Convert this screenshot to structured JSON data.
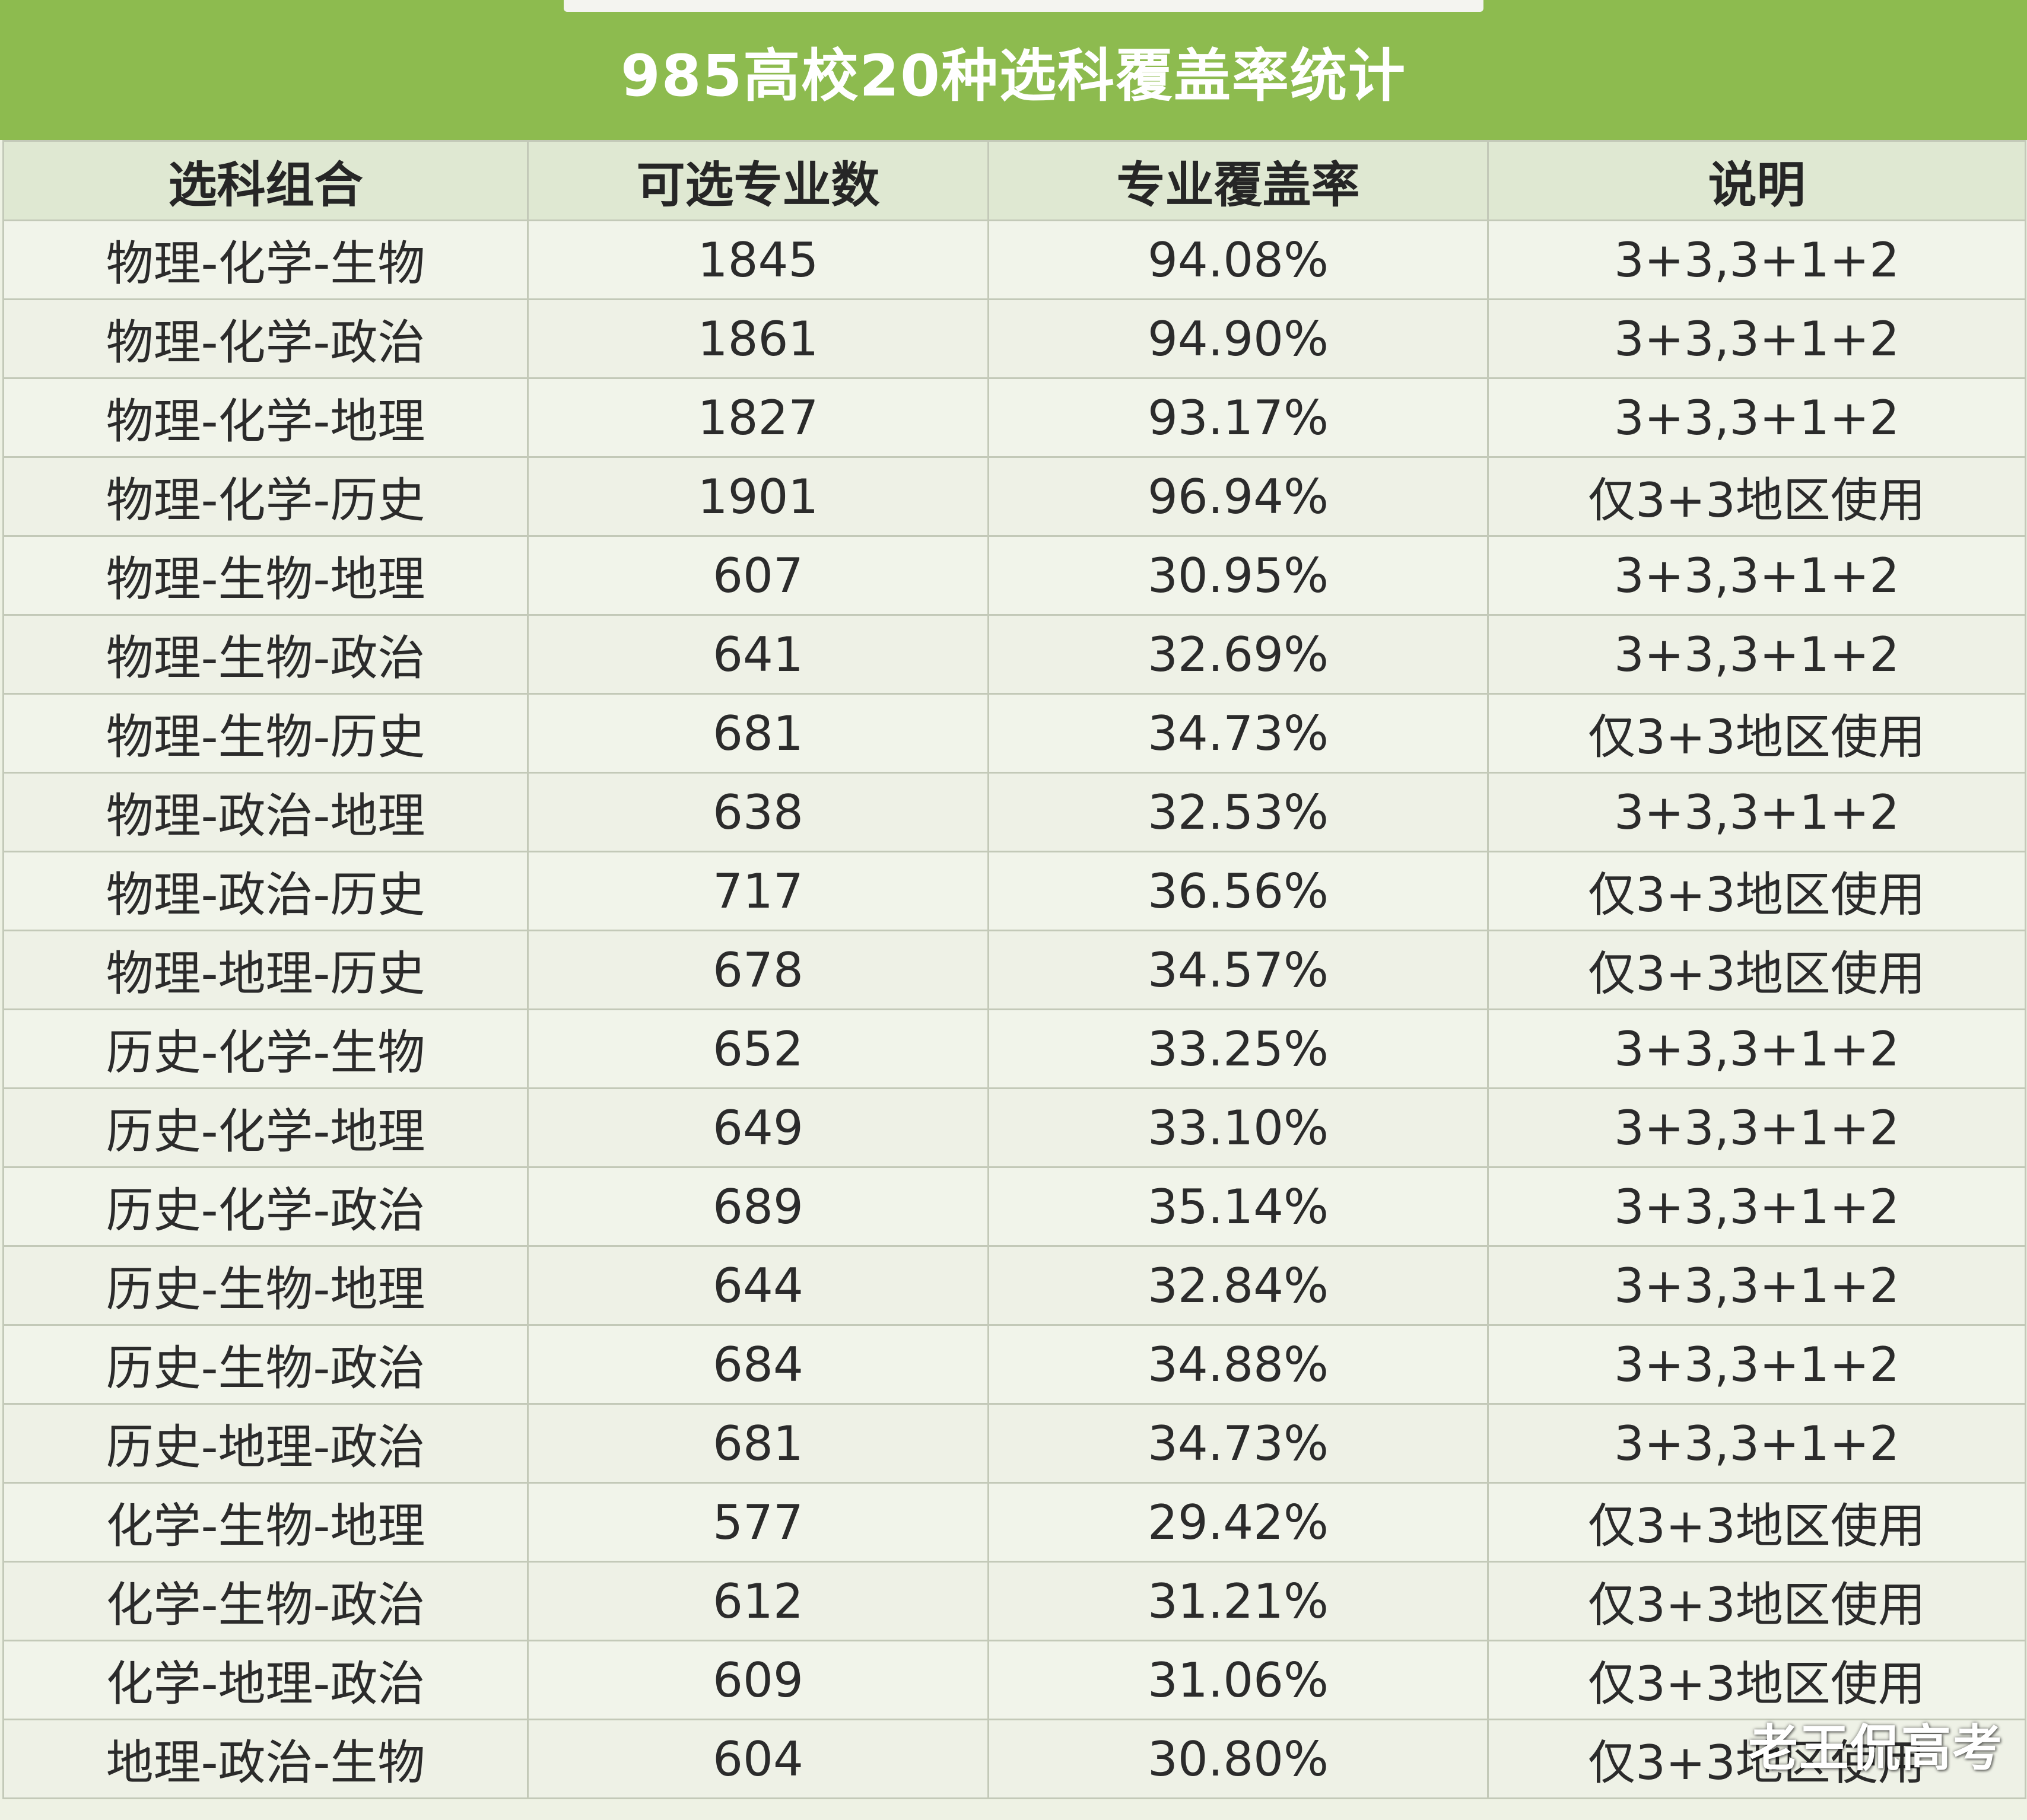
{
  "title": "985高校20种选科覆盖率统计",
  "table": {
    "headers": [
      "选科组合",
      "可选专业数",
      "专业覆盖率",
      "说明"
    ],
    "rows": [
      [
        "物理-化学-生物",
        "1845",
        "94.08%",
        "3+3,3+1+2"
      ],
      [
        "物理-化学-政治",
        "1861",
        "94.90%",
        "3+3,3+1+2"
      ],
      [
        "物理-化学-地理",
        "1827",
        "93.17%",
        "3+3,3+1+2"
      ],
      [
        "物理-化学-历史",
        "1901",
        "96.94%",
        "仅3+3地区使用"
      ],
      [
        "物理-生物-地理",
        "607",
        "30.95%",
        "3+3,3+1+2"
      ],
      [
        "物理-生物-政治",
        "641",
        "32.69%",
        "3+3,3+1+2"
      ],
      [
        "物理-生物-历史",
        "681",
        "34.73%",
        "仅3+3地区使用"
      ],
      [
        "物理-政治-地理",
        "638",
        "32.53%",
        "3+3,3+1+2"
      ],
      [
        "物理-政治-历史",
        "717",
        "36.56%",
        "仅3+3地区使用"
      ],
      [
        "物理-地理-历史",
        "678",
        "34.57%",
        "仅3+3地区使用"
      ],
      [
        "历史-化学-生物",
        "652",
        "33.25%",
        "3+3,3+1+2"
      ],
      [
        "历史-化学-地理",
        "649",
        "33.10%",
        "3+3,3+1+2"
      ],
      [
        "历史-化学-政治",
        "689",
        "35.14%",
        "3+3,3+1+2"
      ],
      [
        "历史-生物-地理",
        "644",
        "32.84%",
        "3+3,3+1+2"
      ],
      [
        "历史-生物-政治",
        "684",
        "34.88%",
        "3+3,3+1+2"
      ],
      [
        "历史-地理-政治",
        "681",
        "34.73%",
        "3+3,3+1+2"
      ],
      [
        "化学-生物-地理",
        "577",
        "29.42%",
        "仅3+3地区使用"
      ],
      [
        "化学-生物-政治",
        "612",
        "31.21%",
        "仅3+3地区使用"
      ],
      [
        "化学-地理-政治",
        "609",
        "31.06%",
        "仅3+3地区使用"
      ],
      [
        "地理-政治-生物",
        "604",
        "30.80%",
        "仅3+3地区使用"
      ]
    ]
  },
  "watermark": "老王侃高考",
  "colors": {
    "title_bar": "#8dbb4f",
    "header_bg": "#dfe8d2",
    "cell_bg": "#f1f4ea",
    "grid_line": "#c3c9b8",
    "text": "#2b2b2b"
  }
}
